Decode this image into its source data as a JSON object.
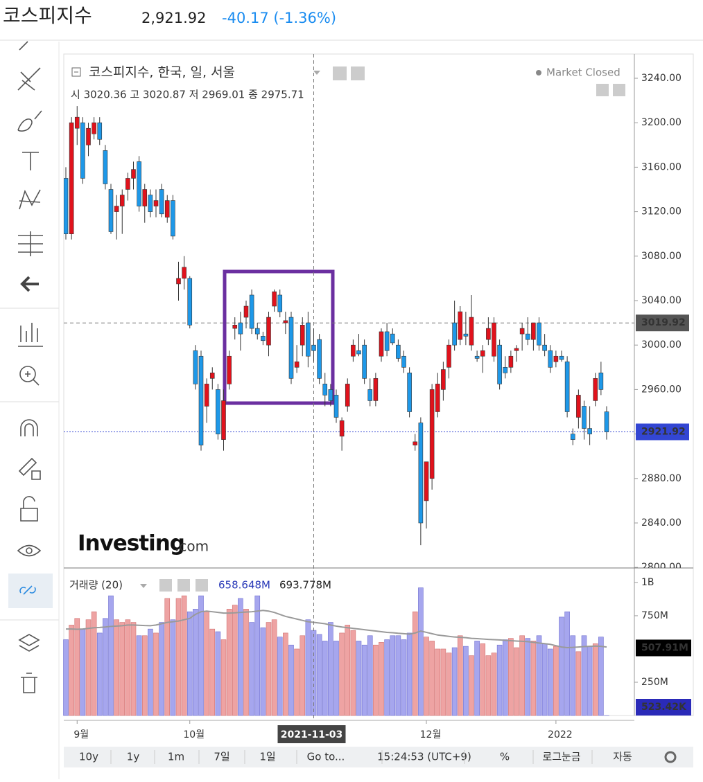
{
  "header": {
    "name": "코스피지수",
    "price": "2,921.92",
    "change": "-40.17 (-1.36%)"
  },
  "legend": {
    "title": "코스피지수, 한국, 일, 서울",
    "ohlc": "시 3020.36 고 3020.87 저 2969.01 종 2975.71",
    "status": "Market Closed"
  },
  "logo": {
    "brand": "Investing",
    "suffix": ".com"
  },
  "toolbar": [
    "10y",
    "1y",
    "1m",
    "7일",
    "1일",
    "Go to...",
    "15:24:53 (UTC+9)",
    "%",
    "로그눈금",
    "자동"
  ],
  "chart_data": {
    "type": "candlestick",
    "categories": [
      null,
      null,
      "9월",
      null,
      null,
      null,
      null,
      null,
      null,
      null,
      null,
      null,
      null,
      null,
      null,
      null,
      null,
      null,
      null,
      null,
      null,
      null,
      "10월",
      null,
      null,
      null,
      null,
      null,
      null,
      null,
      null,
      null,
      null,
      null,
      null,
      null,
      null,
      null,
      null,
      null,
      null,
      null,
      null,
      null,
      "2021-11-03",
      null,
      null,
      null,
      null,
      null,
      null,
      null,
      null,
      null,
      null,
      null,
      null,
      null,
      null,
      null,
      null,
      null,
      null,
      null,
      "12월",
      null,
      null,
      null,
      null,
      null,
      null,
      null,
      null,
      null,
      null,
      null,
      null,
      null,
      null,
      null,
      null,
      null,
      null,
      null,
      null,
      null,
      null,
      "2022",
      null,
      null,
      null,
      null,
      null,
      null,
      null,
      null,
      null
    ],
    "ohlc": [
      [
        3150,
        3160,
        3095,
        3100
      ],
      [
        3100,
        3205,
        3095,
        3200
      ],
      [
        3195,
        3215,
        3180,
        3205
      ],
      [
        3200,
        3205,
        3145,
        3150
      ],
      [
        3180,
        3200,
        3170,
        3195
      ],
      [
        3190,
        3205,
        3185,
        3200
      ],
      [
        3200,
        3205,
        3180,
        3185
      ],
      [
        3175,
        3180,
        3140,
        3145
      ],
      [
        3140,
        3145,
        3100,
        3102
      ],
      [
        3120,
        3135,
        3095,
        3125
      ],
      [
        3125,
        3140,
        3100,
        3135
      ],
      [
        3140,
        3155,
        3130,
        3150
      ],
      [
        3150,
        3165,
        3140,
        3158
      ],
      [
        3165,
        3170,
        3120,
        3125
      ],
      [
        3125,
        3145,
        3110,
        3140
      ],
      [
        3135,
        3140,
        3115,
        3120
      ],
      [
        3125,
        3140,
        3115,
        3130
      ],
      [
        3140,
        3145,
        3115,
        3118
      ],
      [
        3115,
        3135,
        3110,
        3130
      ],
      [
        3130,
        3135,
        3095,
        3098
      ],
      [
        3055,
        3075,
        3040,
        3060
      ],
      [
        3060,
        3080,
        3050,
        3070
      ],
      [
        3060,
        3062,
        3015,
        3018
      ],
      [
        2995,
        3000,
        2960,
        2965
      ],
      [
        2990,
        2995,
        2905,
        2910
      ],
      [
        2945,
        2970,
        2930,
        2965
      ],
      [
        2970,
        2980,
        2960,
        2975
      ],
      [
        2960,
        2965,
        2915,
        2920
      ],
      [
        2915,
        2960,
        2905,
        2950
      ],
      [
        2965,
        2995,
        2960,
        2990
      ],
      [
        3015,
        3025,
        3005,
        3018
      ],
      [
        3020,
        3030,
        2995,
        3010
      ],
      [
        3025,
        3040,
        3015,
        3035
      ],
      [
        3045,
        3050,
        3010,
        3015
      ],
      [
        3015,
        3020,
        3005,
        3010
      ],
      [
        3008,
        3012,
        3000,
        3004
      ],
      [
        3000,
        3030,
        2990,
        3025
      ],
      [
        3035,
        3050,
        3030,
        3048
      ],
      [
        3045,
        3050,
        3025,
        3030
      ],
      [
        3020,
        3030,
        3010,
        3022
      ],
      [
        3025,
        3030,
        2965,
        2970
      ],
      [
        2980,
        3000,
        2975,
        2985
      ],
      [
        3000,
        3025,
        2990,
        3018
      ],
      [
        3020,
        3030,
        2980,
        2990
      ],
      [
        3000,
        3015,
        2985,
        2995
      ],
      [
        3005,
        3010,
        2965,
        2970
      ],
      [
        2965,
        2975,
        2945,
        2955
      ],
      [
        2960,
        2965,
        2945,
        2950
      ],
      [
        2955,
        2960,
        2930,
        2935
      ],
      [
        2918,
        2935,
        2905,
        2932
      ],
      [
        2945,
        2970,
        2940,
        2965
      ],
      [
        2990,
        3005,
        2985,
        3000
      ],
      [
        2995,
        3010,
        2990,
        2992
      ],
      [
        3000,
        3005,
        2965,
        2970
      ],
      [
        2960,
        2970,
        2945,
        2950
      ],
      [
        2950,
        2975,
        2945,
        2970
      ],
      [
        2990,
        3015,
        2985,
        3012
      ],
      [
        3012,
        3020,
        2990,
        2995
      ],
      [
        3010,
        3015,
        3000,
        3002
      ],
      [
        3000,
        3005,
        2985,
        2988
      ],
      [
        2990,
        2995,
        2975,
        2980
      ],
      [
        2975,
        2980,
        2935,
        2940
      ],
      [
        2910,
        2920,
        2905,
        2913
      ],
      [
        2930,
        2935,
        2820,
        2840
      ],
      [
        2860,
        2895,
        2835,
        2895
      ],
      [
        2880,
        2965,
        2870,
        2960
      ],
      [
        2940,
        2975,
        2935,
        2965
      ],
      [
        2960,
        2985,
        2950,
        2978
      ],
      [
        2980,
        3005,
        2970,
        3000
      ],
      [
        3020,
        3040,
        2995,
        3000
      ],
      [
        3005,
        3035,
        3000,
        3030
      ],
      [
        3010,
        3030,
        3000,
        3008
      ],
      [
        3000,
        3045,
        2995,
        3025
      ],
      [
        2990,
        2995,
        2985,
        2988
      ],
      [
        2990,
        3000,
        2975,
        2995
      ],
      [
        3005,
        3025,
        3000,
        3015
      ],
      [
        2990,
        3025,
        2985,
        3020
      ],
      [
        3000,
        3005,
        2960,
        2965
      ],
      [
        2980,
        2990,
        2970,
        2975
      ],
      [
        2980,
        2995,
        2975,
        2990
      ],
      [
        2995,
        3000,
        2985,
        2997
      ],
      [
        3010,
        3020,
        2995,
        3015
      ],
      [
        3010,
        3025,
        3000,
        3005
      ],
      [
        3005,
        3020,
        2995,
        3020
      ],
      [
        3020,
        3025,
        2995,
        3000
      ],
      [
        3000,
        3010,
        2990,
        2995
      ],
      [
        2995,
        3000,
        2975,
        2980
      ],
      [
        2985,
        2995,
        2980,
        2990
      ],
      [
        2990,
        2995,
        2985,
        2987
      ],
      [
        2985,
        2990,
        2935,
        2940
      ],
      [
        2920,
        2925,
        2910,
        2915
      ],
      [
        2935,
        2960,
        2925,
        2955
      ],
      [
        2945,
        2950,
        2915,
        2925
      ],
      [
        2925,
        2945,
        2910,
        2920
      ],
      [
        2950,
        2975,
        2945,
        2970
      ],
      [
        2975,
        2985,
        2955,
        2960
      ],
      [
        2940,
        2945,
        2915,
        2921.92
      ]
    ],
    "up_color": "#e0121c",
    "down_color": "#1e98e8",
    "ylim": [
      2799.5,
      3261.8
    ],
    "yticks": [
      {
        "value": 3240,
        "label": "3240.00"
      },
      {
        "value": 3200,
        "label": "3200.00"
      },
      {
        "value": 3160,
        "label": "3160.00"
      },
      {
        "value": 3120,
        "label": "3120.00"
      },
      {
        "value": 3080,
        "label": "3080.00"
      },
      {
        "value": 3040,
        "label": "3040.00"
      },
      {
        "value": 3000,
        "label": "3000.00"
      },
      {
        "value": 2960,
        "label": "2960.00"
      },
      {
        "value": 2920,
        "label": "2920.00"
      },
      {
        "value": 2880,
        "label": "2880.00"
      },
      {
        "value": 2840,
        "label": "2840.00"
      },
      {
        "value": 2800,
        "label": "2800.00"
      }
    ],
    "crosshair": {
      "value": 3019.92,
      "label": "3019.92"
    },
    "last": {
      "value": 2921.92,
      "label": "2921.92",
      "color": "#3346d3"
    },
    "volume": {
      "title": "거래량 (20)",
      "readouts": [
        "658.648M",
        "693.778M"
      ],
      "values": [
        570,
        680,
        730,
        650,
        720,
        780,
        620,
        730,
        900,
        720,
        700,
        720,
        700,
        600,
        600,
        650,
        620,
        700,
        880,
        720,
        880,
        900,
        780,
        800,
        900,
        780,
        650,
        630,
        570,
        800,
        830,
        880,
        800,
        700,
        900,
        660,
        700,
        720,
        590,
        620,
        530,
        500,
        600,
        720,
        640,
        610,
        560,
        700,
        560,
        620,
        680,
        640,
        560,
        530,
        600,
        530,
        550,
        570,
        600,
        600,
        570,
        620,
        780,
        960,
        590,
        560,
        500,
        500,
        470,
        510,
        600,
        520,
        450,
        560,
        540,
        450,
        470,
        530,
        570,
        580,
        510,
        600,
        580,
        560,
        600,
        540,
        500,
        520,
        740,
        780,
        600,
        480,
        600,
        520,
        540,
        590,
        0.52342
      ],
      "ma": [
        650,
        650,
        648,
        650,
        655,
        660,
        662,
        665,
        670,
        672,
        675,
        680,
        680,
        678,
        676,
        675,
        680,
        690,
        700,
        705,
        710,
        720,
        730,
        760,
        780,
        785,
        780,
        775,
        770,
        770,
        772,
        775,
        778,
        780,
        785,
        790,
        785,
        775,
        760,
        745,
        735,
        725,
        715,
        705,
        700,
        695,
        690,
        680,
        672,
        665,
        660,
        655,
        650,
        645,
        640,
        635,
        630,
        625,
        622,
        618,
        615,
        612,
        620,
        635,
        625,
        615,
        605,
        600,
        595,
        590,
        588,
        585,
        580,
        578,
        575,
        572,
        570,
        568,
        565,
        562,
        560,
        558,
        555,
        550,
        545,
        540,
        535,
        525,
        515,
        510,
        512,
        515,
        518,
        520,
        522,
        520,
        515
      ],
      "up_color": "#eea3a3",
      "down_color": "#a6a6ee",
      "ma_color": "#9a9a9a",
      "ylim": [
        0,
        1109
      ],
      "yticks": [
        {
          "value": 1000,
          "label": "1B"
        },
        {
          "value": 750,
          "label": "750M"
        },
        {
          "value": 250,
          "label": "250M"
        }
      ],
      "markers": [
        {
          "value": 507.91,
          "label": "507.91M",
          "color": "#000000"
        },
        {
          "value": 0.52342,
          "label": "523.42K",
          "color": "#2a2ab8"
        }
      ]
    }
  }
}
